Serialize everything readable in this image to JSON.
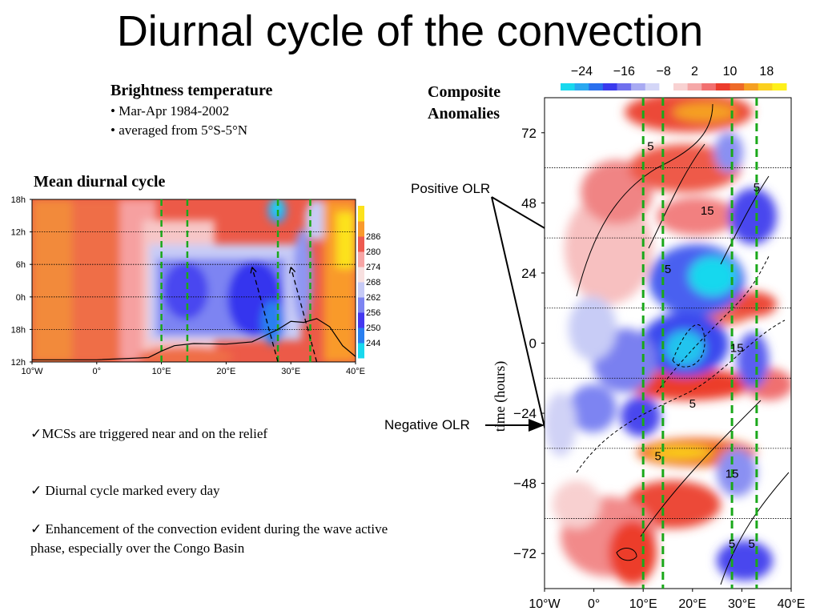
{
  "slide": {
    "title": "Diurnal cycle of the convection",
    "brightness_heading": "Brightness temperature",
    "brightness_bullets": [
      "• Mar-Apr 1984-2002",
      "• averaged from 5°S-5°N"
    ],
    "composite_heading_line1": "Composite",
    "composite_heading_line2": "Anomalies",
    "mean_cycle_heading": "Mean diurnal cycle",
    "positive_label": "Positive OLR",
    "negative_label": "Negative OLR",
    "bullets": [
      "✓MCSs are triggered near and on the relief",
      "✓ Diurnal cycle marked every day",
      "✓ Enhancement of the convection evident during the wave active",
      "phase, especially over the Congo Basin"
    ]
  },
  "chart_data": [
    {
      "type": "heatmap",
      "title": "Mean diurnal cycle",
      "x_tick_labels": [
        "10°W",
        "0°",
        "10°E",
        "20°E",
        "30°E",
        "40°E"
      ],
      "x_ticks": [
        -10,
        0,
        10,
        20,
        30,
        40
      ],
      "xlim": [
        -10,
        40
      ],
      "y_tick_labels": [
        "12h",
        "18h",
        "0h",
        "6h",
        "12h",
        "18h"
      ],
      "y_ticks": [
        0,
        6,
        12,
        18,
        24,
        30
      ],
      "ylim": [
        0,
        30
      ],
      "colorbar_labels": [
        "244",
        "250",
        "256",
        "262",
        "268",
        "274",
        "280",
        "286"
      ],
      "colorbar_values": [
        244,
        250,
        256,
        262,
        268,
        274,
        280,
        286
      ],
      "colorbar_colors": [
        "#18d8ee",
        "#2a7ff0",
        "#4438f0",
        "#7d84f2",
        "#c6caf6",
        "#f8e0e0",
        "#f7a5a5",
        "#ee5a50",
        "#f99a2c",
        "#fce21c"
      ],
      "relief_longitudes": [
        10,
        14,
        28,
        33
      ],
      "cold_cloud_tracks": [
        {
          "from": [
            28,
            0
          ],
          "to": [
            24,
            17.5
          ]
        },
        {
          "from": [
            34,
            0
          ],
          "to": [
            30,
            17.5
          ]
        }
      ],
      "topography_profile": {
        "x": [
          -10,
          0,
          8,
          10,
          12,
          15,
          20,
          24,
          28,
          30,
          32,
          34,
          36,
          38,
          40
        ],
        "y": [
          0.4,
          0.4,
          0.8,
          2,
          3,
          3.4,
          3.3,
          3.7,
          6,
          7.5,
          7.3,
          8,
          6.5,
          3,
          1
        ]
      },
      "colorbar_position": "right"
    },
    {
      "type": "heatmap",
      "title": "Composite Anomalies",
      "ylabel": "time (hours)",
      "x_tick_labels": [
        "10°W",
        "0°",
        "10°E",
        "20°E",
        "30°E",
        "40°E"
      ],
      "x_ticks": [
        -10,
        0,
        10,
        20,
        30,
        40
      ],
      "xlim": [
        -10,
        40
      ],
      "y_tick_labels": [
        "72",
        "48",
        "24",
        "0",
        "−24",
        "−48",
        "−72"
      ],
      "y_ticks": [
        72,
        48,
        24,
        0,
        -24,
        -48,
        -72
      ],
      "ylim": [
        -84,
        84
      ],
      "colorbar_labels": [
        "−24",
        "−16",
        "−8",
        "2",
        "10",
        "18"
      ],
      "colorbar_values": [
        -24,
        -16,
        -8,
        2,
        10,
        18
      ],
      "colorbar_colors": [
        "#18d8ee",
        "#2aa8f0",
        "#2a70ee",
        "#3a3aee",
        "#7070ee",
        "#a8aaf2",
        "#d4d6f7",
        "#ffffff",
        "#f8d2d2",
        "#f5a8a8",
        "#f27070",
        "#ec3c2c",
        "#ee6a28",
        "#f5a022",
        "#fbd01e",
        "#fef01a"
      ],
      "colorbar_position": "top",
      "relief_longitudes": [
        10,
        14,
        28,
        33
      ],
      "diurnal_lines": [
        60,
        36,
        12,
        -12,
        -36,
        -60
      ],
      "contour_labels": [
        {
          "text": "5",
          "x": 11.5,
          "y": 66
        },
        {
          "text": "15",
          "x": 23,
          "y": 44
        },
        {
          "text": "5",
          "x": 33,
          "y": 52
        },
        {
          "text": "15",
          "x": 29,
          "y": -3
        },
        {
          "text": "5",
          "x": 15,
          "y": 24
        },
        {
          "text": "5",
          "x": 20,
          "y": -22
        },
        {
          "text": "5",
          "x": 13,
          "y": -40
        },
        {
          "text": "15",
          "x": 28,
          "y": -46
        },
        {
          "text": "5",
          "x": 28,
          "y": -70
        },
        {
          "text": "5",
          "x": 32,
          "y": -70
        }
      ]
    }
  ]
}
